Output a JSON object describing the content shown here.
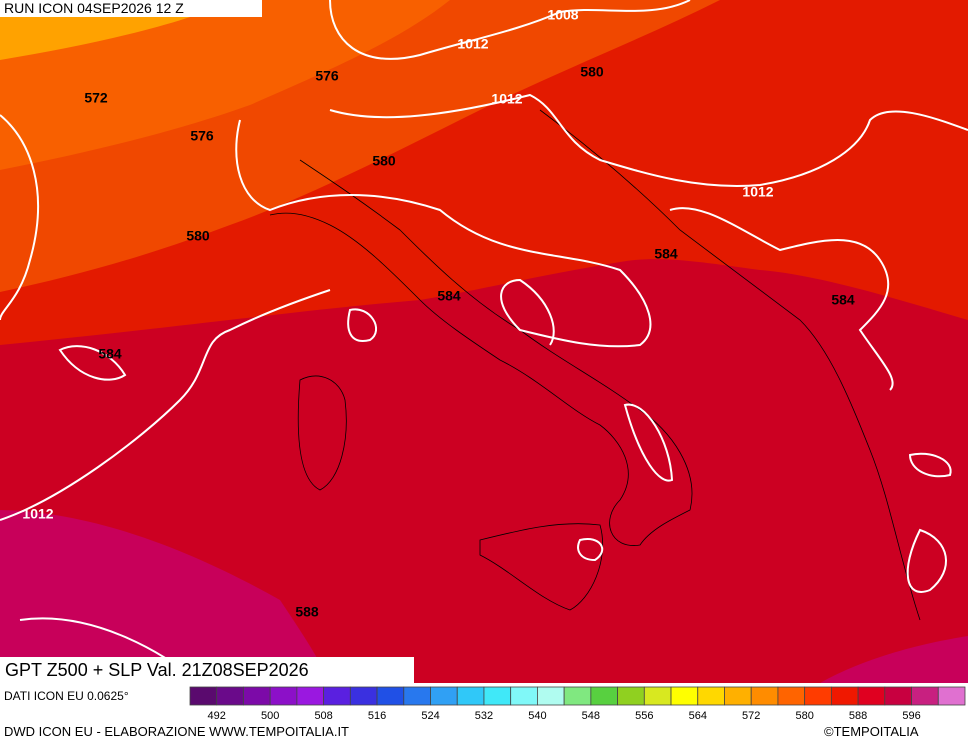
{
  "header": {
    "title": "RUN ICON 04SEP2026 12 Z"
  },
  "map": {
    "caption": "GPT Z500 + SLP Val. 21Z08SEP2026",
    "contour_labels": [
      "1008",
      "1012",
      "580",
      "576",
      "572",
      "1012",
      "576",
      "580",
      "1012",
      "580",
      "584",
      "584",
      "584",
      "584",
      "1012",
      "588"
    ]
  },
  "legend": {
    "labels": [
      492,
      500,
      508,
      516,
      524,
      532,
      540,
      548,
      556,
      564,
      572,
      580,
      588,
      596
    ],
    "colors": [
      "#5a0a6e",
      "#6a0a8a",
      "#7c0aa8",
      "#8c10c8",
      "#9a18e0",
      "#5a20e0",
      "#3a30e0",
      "#2050e6",
      "#2878ee",
      "#30a0f4",
      "#30c8f8",
      "#40e8f8",
      "#80f8f8",
      "#b0fcf0",
      "#80e880",
      "#58d040",
      "#90d020",
      "#d8e820",
      "#ffff00",
      "#ffd800",
      "#ffb000",
      "#ff8c00",
      "#ff6400",
      "#ff3c00",
      "#f01800",
      "#e00020",
      "#c80040",
      "#c82080",
      "#e070d0"
    ]
  },
  "footer": {
    "source": "DATI ICON EU 0.0625°",
    "credit": "DWD ICON EU - ELABORAZIONE WWW.TEMPOITALIA.IT",
    "copyright": "©TEMPOITALIA"
  }
}
